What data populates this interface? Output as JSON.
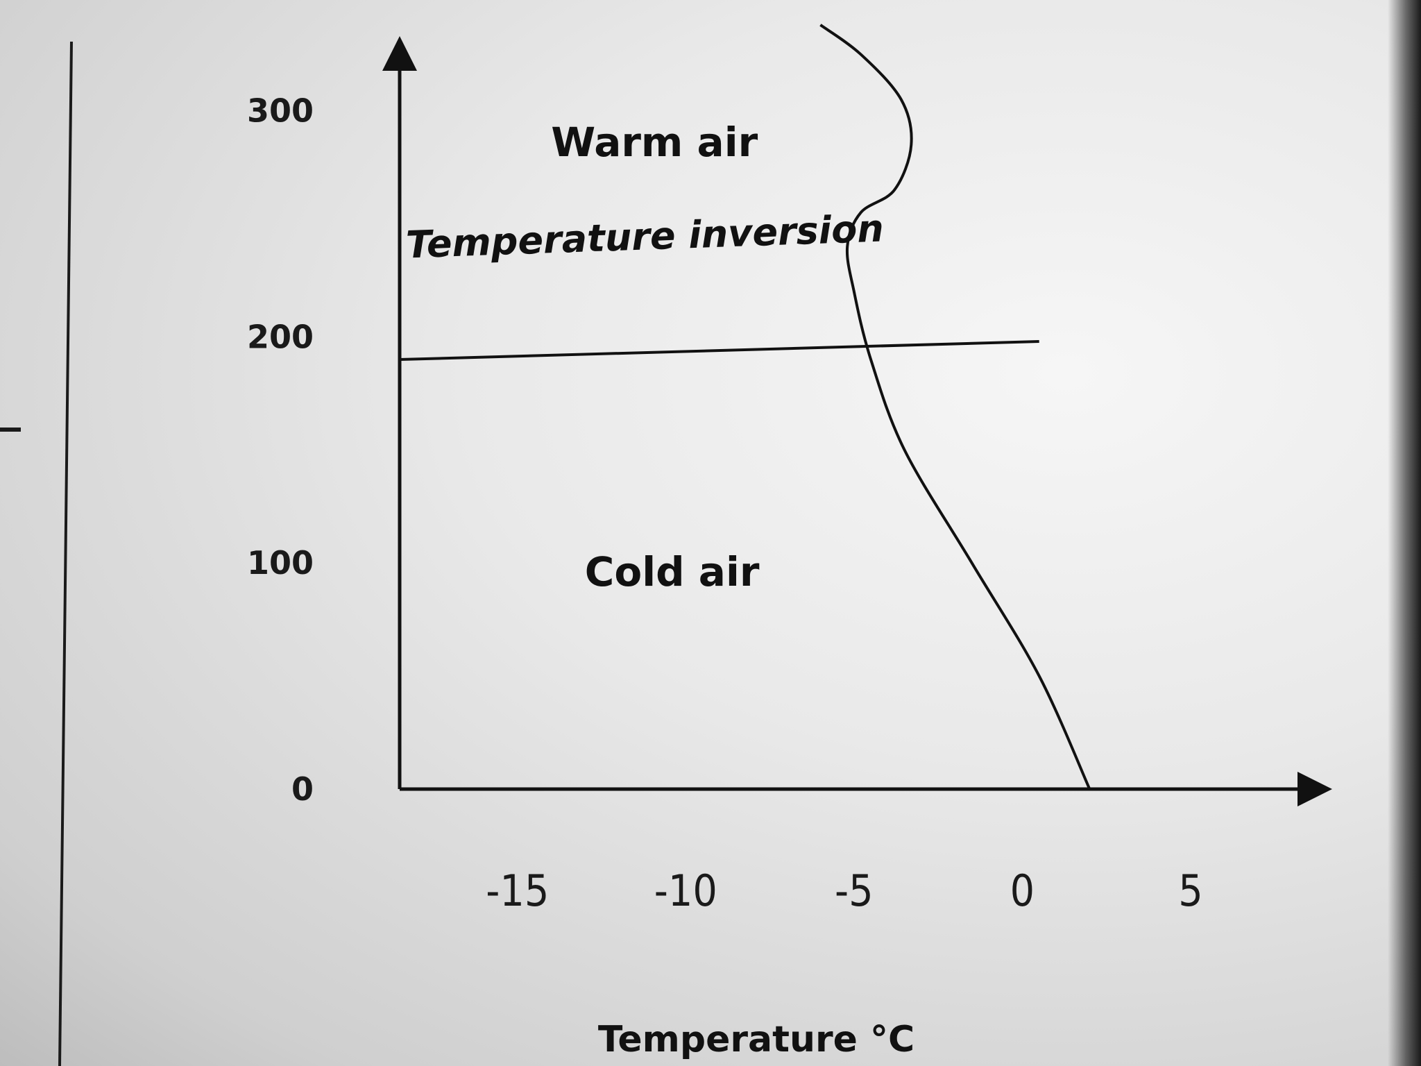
{
  "chart_data": {
    "type": "line",
    "title": "",
    "xlabel": "Temperature °C",
    "ylabel": "",
    "xlim": [
      -18.5,
      9
    ],
    "ylim": [
      0,
      330
    ],
    "x_ticks": [
      "-15",
      "-10",
      "-5",
      "0",
      "5"
    ],
    "y_ticks": [
      "0",
      "100",
      "200",
      "300"
    ],
    "grid": false,
    "series": [
      {
        "x": [
          2,
          0.5,
          -1.5,
          -3.5,
          -4.5,
          -5,
          -5.2,
          -4.8,
          -3.8,
          -3.3,
          -3.6,
          -4.8,
          -6
        ],
        "y": [
          0,
          50,
          100,
          150,
          190,
          220,
          240,
          255,
          265,
          285,
          305,
          325,
          338
        ]
      }
    ],
    "inversion_line": {
      "x": [
        -18.5,
        0.5
      ],
      "y": [
        190,
        198
      ]
    },
    "annotations": [
      {
        "text": "Warm air",
        "x": -14,
        "y": 280,
        "style": "normal"
      },
      {
        "text": "Temperature inversion",
        "x": -18.3,
        "y": 235,
        "style": "italic"
      },
      {
        "text": "Cold air",
        "x": -13,
        "y": 90,
        "style": "normal"
      }
    ]
  }
}
